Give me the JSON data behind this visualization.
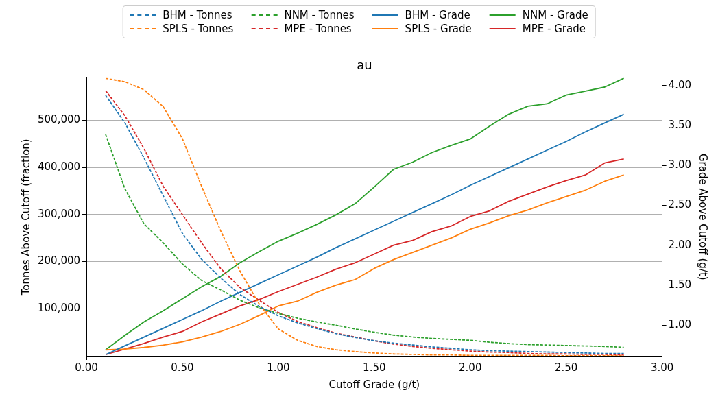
{
  "chart_data": {
    "type": "line",
    "title": "au",
    "xlabel": "Cutoff Grade (g/t)",
    "ylabel": "Tonnes Above Cutoff (fraction)",
    "y2label": "Grade Above Cutoff (g/t)",
    "x": [
      0.1,
      0.2,
      0.3,
      0.4,
      0.5,
      0.6,
      0.7,
      0.8,
      0.9,
      1.0,
      1.1,
      1.2,
      1.3,
      1.4,
      1.5,
      1.6,
      1.7,
      1.8,
      1.9,
      2.0,
      2.1,
      2.2,
      2.3,
      2.4,
      2.5,
      2.6,
      2.7,
      2.8
    ],
    "series": [
      {
        "name": "BHM - Tonnes",
        "color": "#1f77b4",
        "line_style": "dashed",
        "values": [
          553000,
          495000,
          420000,
          340000,
          260000,
          205000,
          165000,
          130000,
          105000,
          85000,
          70000,
          58000,
          47000,
          39000,
          32000,
          27000,
          23000,
          19000,
          16000,
          13000,
          11000,
          10000,
          9000,
          8000,
          7000,
          6000,
          5000,
          5000
        ]
      },
      {
        "name": "SPLS - Tonnes",
        "color": "#ff7f0e",
        "line_style": "dashed",
        "values": [
          589000,
          582000,
          565000,
          529000,
          461000,
          360000,
          265000,
          180000,
          110000,
          57000,
          33000,
          20000,
          13000,
          9000,
          6000,
          4000,
          3000,
          2000,
          2000,
          1000,
          1000,
          1000,
          1000,
          1000,
          0,
          0,
          0,
          0
        ]
      },
      {
        "name": "NNM - Tonnes",
        "color": "#2ca02c",
        "line_style": "dashed",
        "values": [
          470000,
          355000,
          280000,
          240000,
          195000,
          160000,
          140000,
          118000,
          102000,
          90000,
          80000,
          72000,
          65000,
          57000,
          50000,
          44000,
          40000,
          37000,
          35000,
          33000,
          29000,
          26000,
          24000,
          23000,
          22000,
          21000,
          20000,
          18000
        ]
      },
      {
        "name": "MPE - Tonnes",
        "color": "#d62728",
        "line_style": "dashed",
        "values": [
          563000,
          510000,
          440000,
          360000,
          300000,
          240000,
          185000,
          145000,
          118000,
          92000,
          73000,
          60000,
          48000,
          40000,
          32000,
          25000,
          20000,
          16000,
          13000,
          10000,
          8000,
          7000,
          5000,
          4000,
          4000,
          3000,
          3000,
          2000
        ]
      },
      {
        "name": "BHM - Grade",
        "color": "#1f77b4",
        "axis": "y2",
        "line_style": "solid",
        "values": [
          0.63,
          0.74,
          0.85,
          0.96,
          1.07,
          1.18,
          1.3,
          1.41,
          1.52,
          1.63,
          1.74,
          1.85,
          1.97,
          2.08,
          2.19,
          2.3,
          2.41,
          2.52,
          2.63,
          2.75,
          2.86,
          2.97,
          3.08,
          3.19,
          3.3,
          3.42,
          3.53,
          3.64
        ]
      },
      {
        "name": "SPLS - Grade",
        "color": "#ff7f0e",
        "axis": "y2",
        "line_style": "solid",
        "values": [
          0.69,
          0.7,
          0.72,
          0.75,
          0.79,
          0.85,
          0.92,
          1.01,
          1.12,
          1.24,
          1.3,
          1.41,
          1.5,
          1.57,
          1.71,
          1.82,
          1.91,
          2.0,
          2.09,
          2.2,
          2.28,
          2.37,
          2.44,
          2.53,
          2.61,
          2.69,
          2.8,
          2.88
        ]
      },
      {
        "name": "NNM - Grade",
        "color": "#2ca02c",
        "axis": "y2",
        "line_style": "solid",
        "values": [
          0.69,
          0.87,
          1.04,
          1.18,
          1.33,
          1.48,
          1.61,
          1.78,
          1.92,
          2.05,
          2.15,
          2.26,
          2.38,
          2.52,
          2.73,
          2.95,
          3.04,
          3.16,
          3.25,
          3.33,
          3.49,
          3.64,
          3.74,
          3.77,
          3.88,
          3.93,
          3.98,
          4.09
        ]
      },
      {
        "name": "MPE - Grade",
        "color": "#d62728",
        "axis": "y2",
        "line_style": "solid",
        "values": [
          0.63,
          0.7,
          0.77,
          0.85,
          0.92,
          1.04,
          1.14,
          1.24,
          1.32,
          1.42,
          1.51,
          1.6,
          1.7,
          1.78,
          1.89,
          2.0,
          2.06,
          2.17,
          2.24,
          2.36,
          2.43,
          2.55,
          2.64,
          2.73,
          2.81,
          2.88,
          3.03,
          3.08
        ]
      }
    ],
    "xlim": [
      0,
      3
    ],
    "xticks": [
      {
        "value": 0,
        "label": "0.00"
      },
      {
        "value": 0.5,
        "label": "0.50"
      },
      {
        "value": 1,
        "label": "1.00"
      },
      {
        "value": 1.5,
        "label": "1.50"
      },
      {
        "value": 2,
        "label": "2.00"
      },
      {
        "value": 2.5,
        "label": "2.50"
      },
      {
        "value": 3,
        "label": "3.00"
      }
    ],
    "ylim": [
      0,
      590000
    ],
    "yticks": [
      {
        "value": 100000,
        "label": "100,000"
      },
      {
        "value": 200000,
        "label": "200,000"
      },
      {
        "value": 300000,
        "label": "300,000"
      },
      {
        "value": 400000,
        "label": "400,000"
      },
      {
        "value": 500000,
        "label": "500,000"
      }
    ],
    "y2lim": [
      0.615,
      4.095
    ],
    "y2ticks": [
      {
        "value": 1,
        "label": "1.00"
      },
      {
        "value": 1.5,
        "label": "1.50"
      },
      {
        "value": 2,
        "label": "2.00"
      },
      {
        "value": 2.5,
        "label": "2.50"
      },
      {
        "value": 3,
        "label": "3.00"
      },
      {
        "value": 3.5,
        "label": "3.50"
      },
      {
        "value": 4,
        "label": "4.00"
      }
    ],
    "grid": true,
    "legend": "top",
    "marker": "none"
  }
}
